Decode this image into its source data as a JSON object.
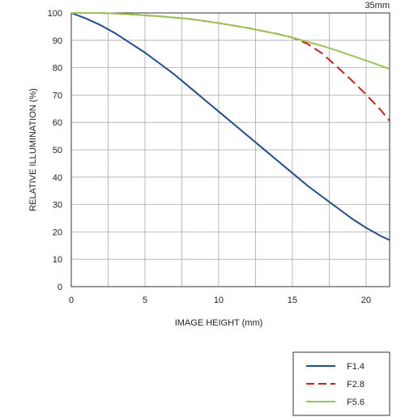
{
  "chart_data": {
    "type": "line",
    "corner_label": "35mm",
    "xlabel": "IMAGE HEIGHT (mm)",
    "ylabel": "RELATIVE ILLUMINATION (%)",
    "xlim": [
      0,
      21.6
    ],
    "ylim": [
      0,
      100
    ],
    "xticks": [
      "0",
      "5",
      "10",
      "15",
      "20"
    ],
    "xtick_values": [
      0,
      5,
      10,
      15,
      20
    ],
    "yticks": [
      "0",
      "10",
      "20",
      "30",
      "40",
      "50",
      "60",
      "70",
      "80",
      "90",
      "100"
    ],
    "ytick_values": [
      0,
      10,
      20,
      30,
      40,
      50,
      60,
      70,
      80,
      90,
      100
    ],
    "grid": true,
    "legend_position": "bottom-right, below plot",
    "series": [
      {
        "name": "F1.4",
        "color": "#1f4e8c",
        "dash": "solid",
        "x": [
          0,
          1,
          2,
          3,
          4,
          5,
          6,
          7,
          8,
          9,
          10,
          11,
          12,
          13,
          14,
          15,
          16,
          17,
          18,
          19,
          20,
          21,
          21.6
        ],
        "y": [
          100,
          98,
          95.5,
          92.5,
          89,
          85.5,
          81.5,
          77.5,
          73,
          68.5,
          64,
          59.5,
          55,
          50.5,
          46,
          41.5,
          37,
          33,
          29,
          25,
          21.5,
          18.5,
          17
        ]
      },
      {
        "name": "F2.8",
        "color": "#cc1f1f",
        "dash": "dashed",
        "x": [
          0,
          2,
          4,
          6,
          8,
          10,
          12,
          14,
          15,
          16,
          17,
          18,
          19,
          20,
          21,
          21.6
        ],
        "y": [
          100,
          100,
          99.5,
          98.8,
          97.8,
          96.3,
          94.5,
          92.3,
          91,
          88.8,
          85.3,
          80.5,
          75.5,
          70.2,
          64.5,
          60.5
        ]
      },
      {
        "name": "F5.6",
        "color": "#9cc258",
        "dash": "solid",
        "x": [
          0,
          2,
          4,
          6,
          8,
          10,
          12,
          14,
          15,
          16,
          17,
          18,
          19,
          20,
          21,
          21.6
        ],
        "y": [
          100,
          100,
          99.5,
          98.8,
          97.8,
          96.3,
          94.5,
          92.3,
          91,
          89.5,
          88,
          86.3,
          84.5,
          82.6,
          80.7,
          79.5
        ]
      }
    ]
  }
}
